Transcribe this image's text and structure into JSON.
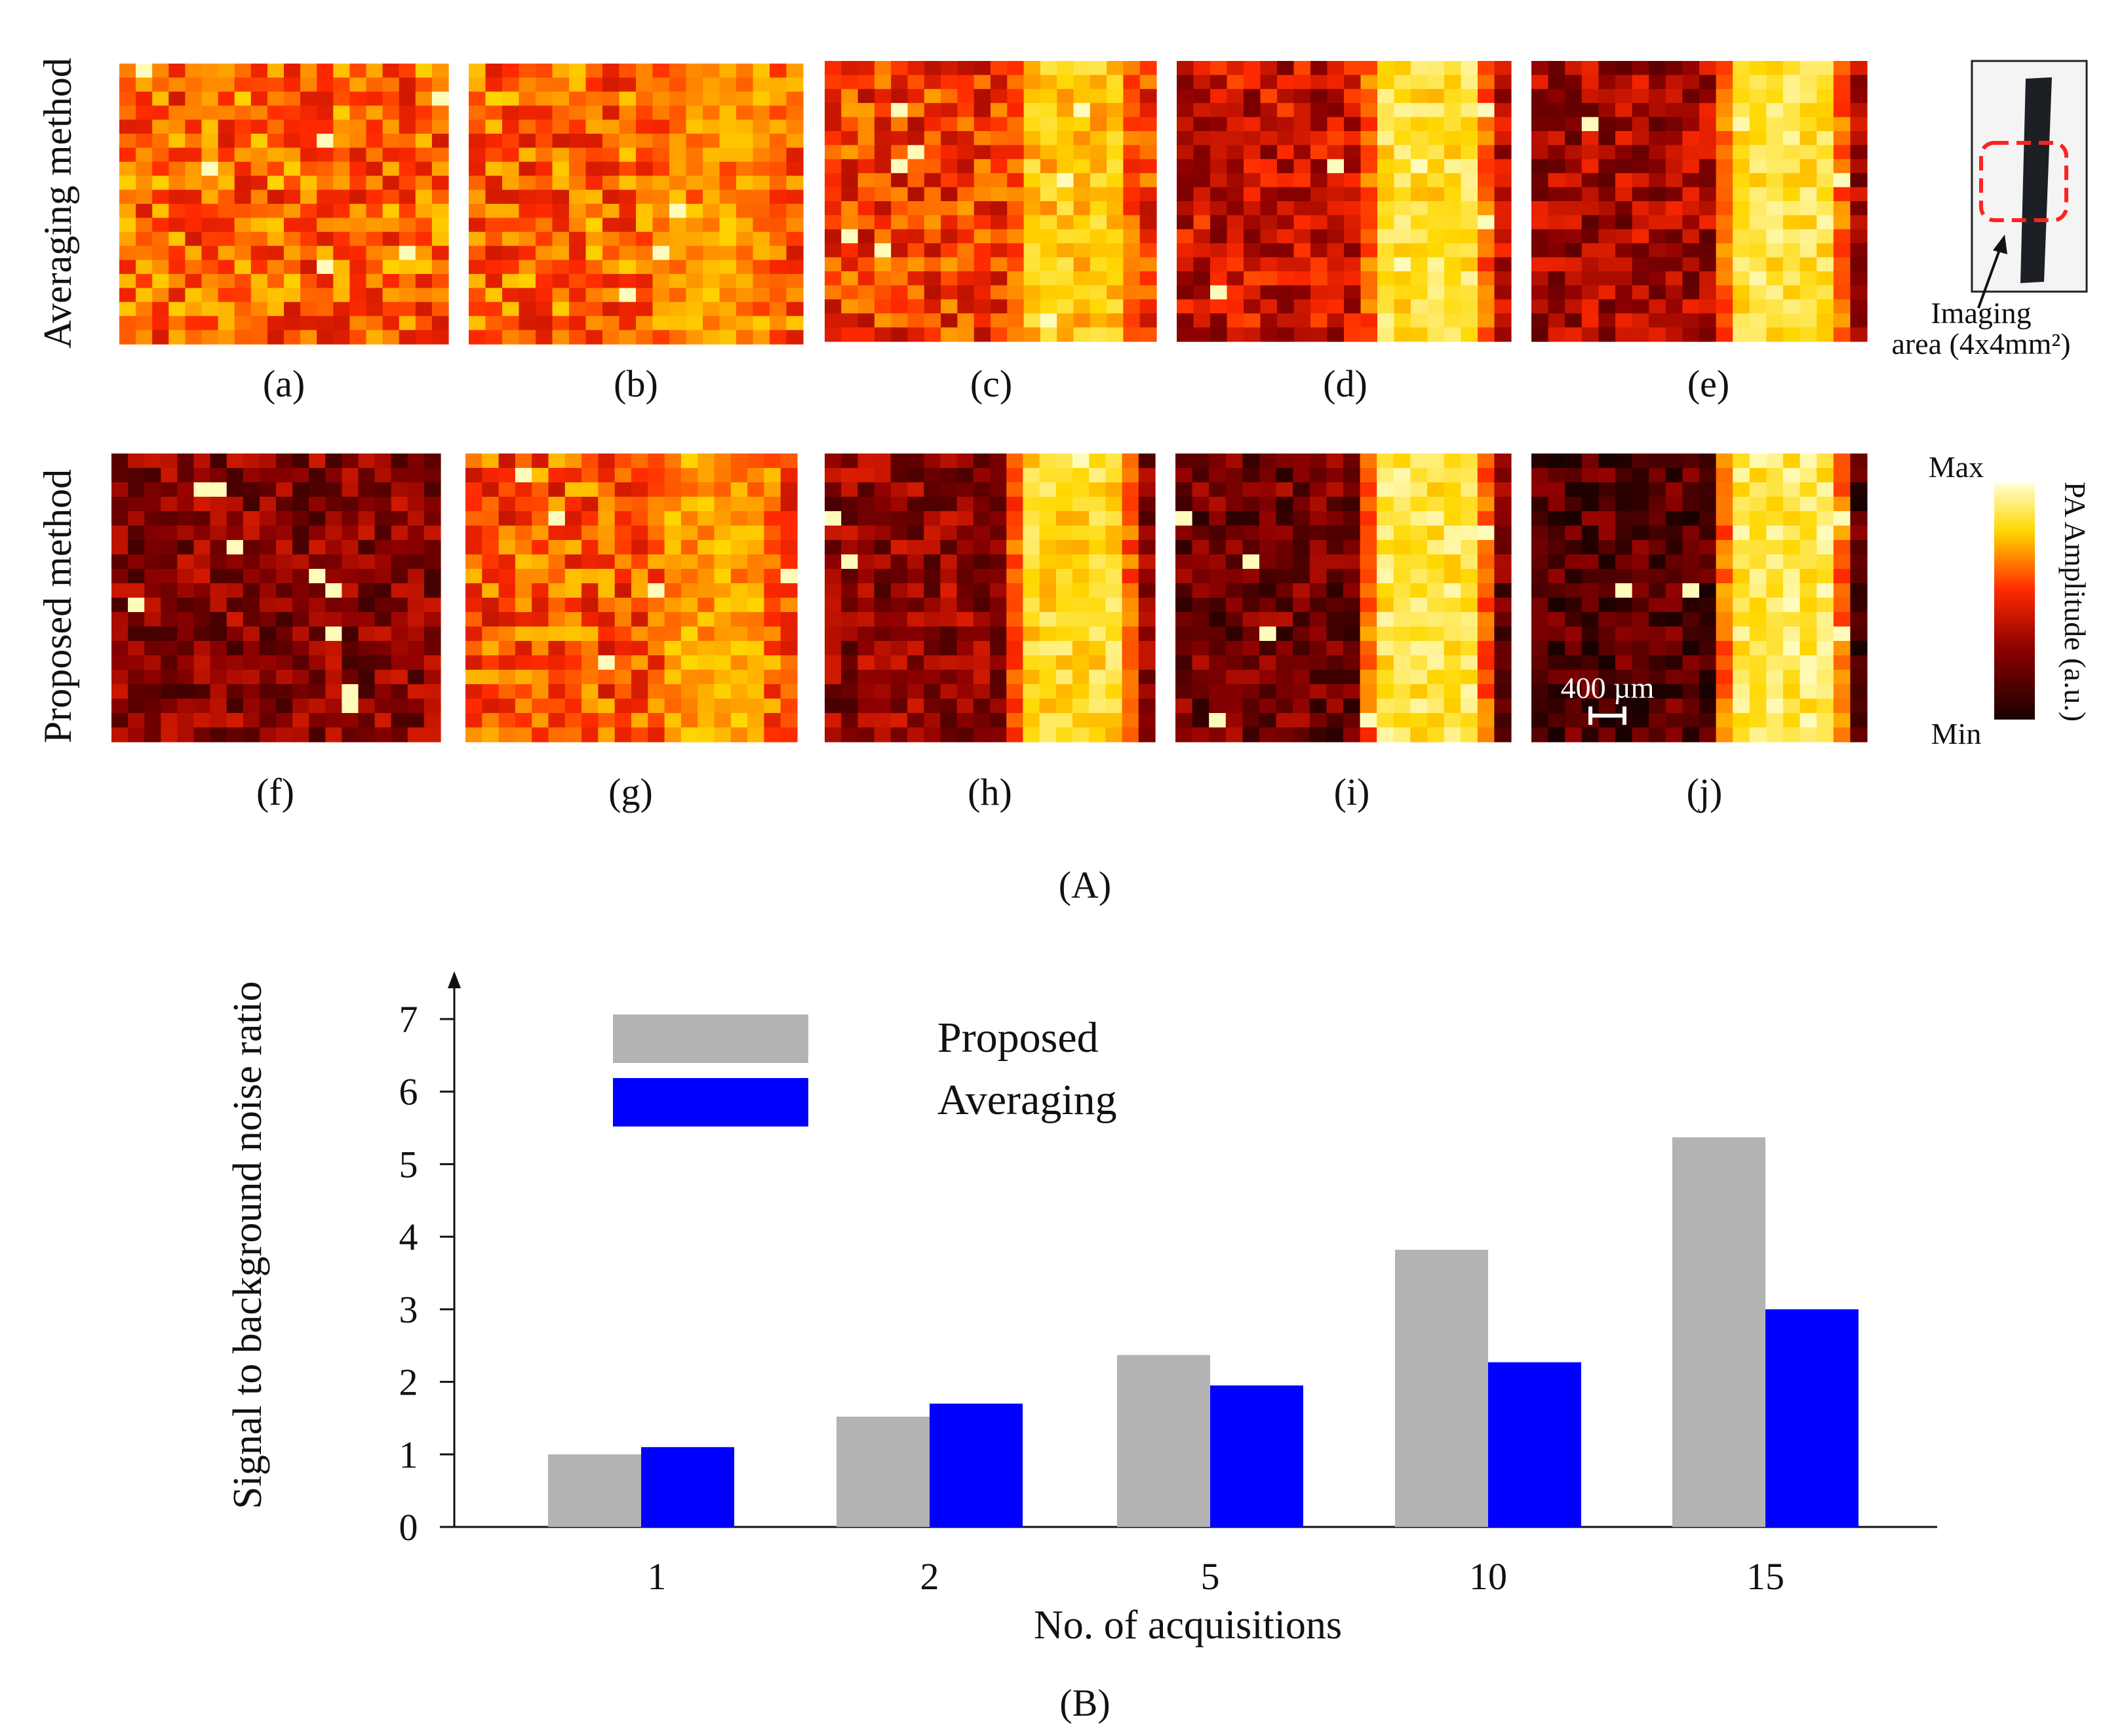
{
  "figure": {
    "part_a_label": "(A)",
    "part_b_label": "(B)",
    "row_labels": {
      "top": "Averaging method",
      "bottom": "Proposed method"
    },
    "colors": {
      "max": "#ffffd0",
      "mid_high": "#ffd700",
      "mid": "#ff2a00",
      "low": "#8b0000",
      "min": "#1a0000"
    },
    "panels": [
      {
        "label": "(a)",
        "row": "averaging",
        "acquisitions": 1,
        "signal_strength": 0.0,
        "background_level": 0.62
      },
      {
        "label": "(b)",
        "row": "averaging",
        "acquisitions": 2,
        "signal_strength": 0.35,
        "background_level": 0.62
      },
      {
        "label": "(c)",
        "row": "averaging",
        "acquisitions": 5,
        "signal_strength": 0.65,
        "background_level": 0.55
      },
      {
        "label": "(d)",
        "row": "averaging",
        "acquisitions": 10,
        "signal_strength": 0.85,
        "background_level": 0.42
      },
      {
        "label": "(e)",
        "row": "averaging",
        "acquisitions": 15,
        "signal_strength": 0.9,
        "background_level": 0.35
      },
      {
        "label": "(f)",
        "row": "proposed",
        "acquisitions": 1,
        "signal_strength": 0.0,
        "background_level": 0.28
      },
      {
        "label": "(g)",
        "row": "proposed",
        "acquisitions": 2,
        "signal_strength": 0.45,
        "background_level": 0.6
      },
      {
        "label": "(h)",
        "row": "proposed",
        "acquisitions": 5,
        "signal_strength": 0.8,
        "background_level": 0.3
      },
      {
        "label": "(i)",
        "row": "proposed",
        "acquisitions": 10,
        "signal_strength": 0.9,
        "background_level": 0.22
      },
      {
        "label": "(j)",
        "row": "proposed",
        "acquisitions": 15,
        "signal_strength": 0.95,
        "background_level": 0.15
      }
    ],
    "imaging_area_label_line1": "Imaging",
    "imaging_area_label_line2": "area (4x4mm²)",
    "colorbar": {
      "max_label": "Max",
      "min_label": "Min",
      "title": "PA Amplitude (a.u.)"
    },
    "scale_bar_label": "400 µm"
  },
  "chart_data": {
    "type": "bar",
    "categories": [
      "1",
      "2",
      "5",
      "10",
      "15"
    ],
    "series": [
      {
        "name": "Proposed",
        "values": [
          1.0,
          1.52,
          2.37,
          3.82,
          5.37
        ],
        "color": "#b3b3b3"
      },
      {
        "name": "Averaging",
        "values": [
          1.1,
          1.7,
          1.95,
          2.27,
          3.0
        ],
        "color": "#0000ff"
      }
    ],
    "title": "",
    "xlabel": "No. of acquisitions",
    "ylabel": "Signal to background noise ratio",
    "ylim": [
      0,
      7
    ],
    "yticks": [
      "0",
      "1",
      "2",
      "3",
      "4",
      "5",
      "6",
      "7"
    ],
    "legend_position": "top-left",
    "grid": false
  }
}
